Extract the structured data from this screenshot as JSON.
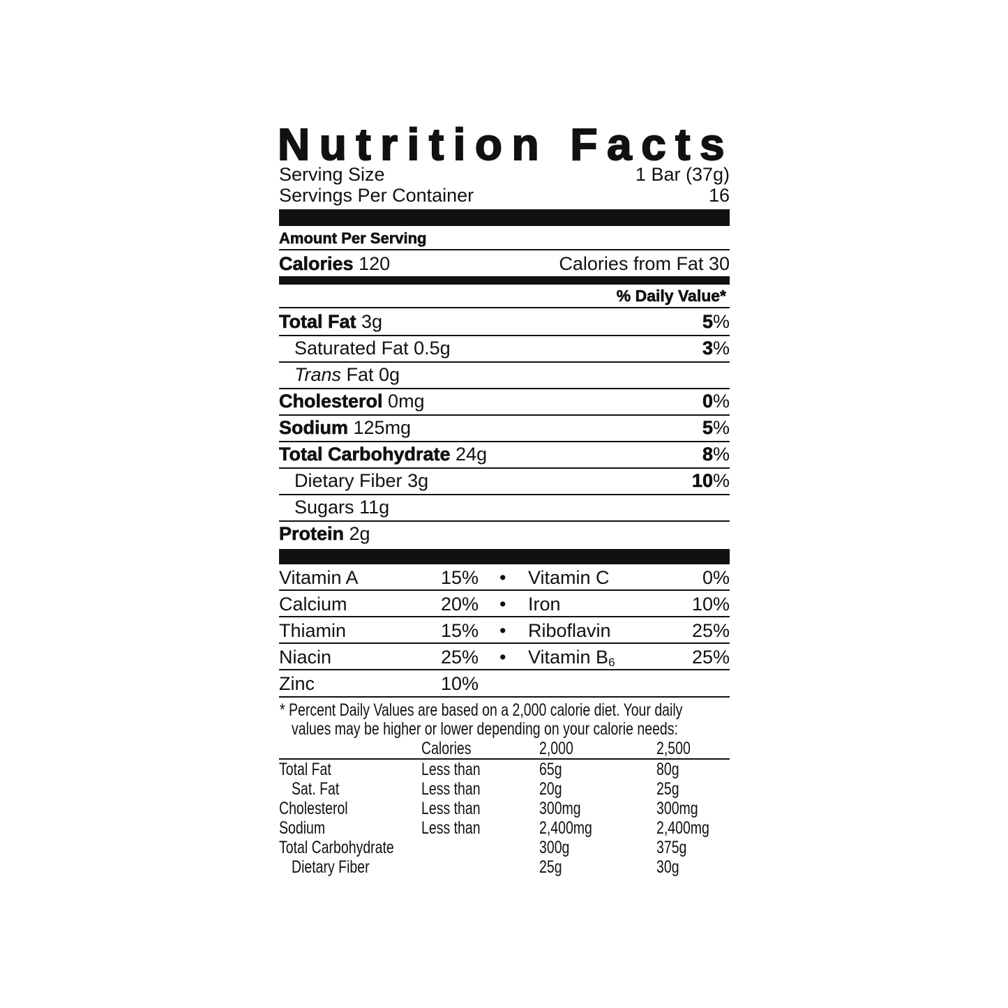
{
  "title": "Nutrition Facts",
  "serving": {
    "size_label": "Serving Size",
    "size_value": "1 Bar (37g)",
    "per_container_label": "Servings Per Container",
    "per_container_value": "16"
  },
  "amount_per_serving": "Amount Per Serving",
  "calories": {
    "label": "Calories",
    "value": "120",
    "from_fat": "Calories from Fat 30"
  },
  "daily_value_header": "% Daily Value*",
  "nutrients": [
    {
      "name": "Total Fat",
      "amount": "3g",
      "dv": "5",
      "pct": "%"
    },
    {
      "name": "Saturated Fat",
      "amount": "0.5g",
      "dv": "3",
      "pct": "%"
    },
    {
      "name": "Trans",
      "amount": "Fat 0g"
    },
    {
      "name": "Cholesterol",
      "amount": "0mg",
      "dv": "0",
      "pct": "%"
    },
    {
      "name": "Sodium",
      "amount": "125mg",
      "dv": "5",
      "pct": "%"
    },
    {
      "name": "Total Carbohydrate",
      "amount": "24g",
      "dv": "8",
      "pct": "%"
    },
    {
      "name": "Dietary Fiber",
      "amount": "3g",
      "dv": "10",
      "pct": "%"
    },
    {
      "name": "Sugars",
      "amount": "11g"
    },
    {
      "name": "Protein",
      "amount": "2g"
    }
  ],
  "vitamins": [
    {
      "left": "Vitamin A",
      "left_dv": "15%",
      "bullet": "•",
      "right": "Vitamin C",
      "right_dv": "0%"
    },
    {
      "left": "Calcium",
      "left_dv": "20%",
      "bullet": "•",
      "right": "Iron",
      "right_dv": "10%"
    },
    {
      "left": "Thiamin",
      "left_dv": "15%",
      "bullet": "•",
      "right": "Riboflavin",
      "right_dv": "25%"
    },
    {
      "left": "Niacin",
      "left_dv": "25%",
      "bullet": "•",
      "right": "Vitamin B",
      "right_sub": "6",
      "right_dv": "25%"
    },
    {
      "left": "Zinc",
      "left_dv": "10%"
    }
  ],
  "footnote": {
    "line1": "* Percent Daily Values are based on a 2,000 calorie diet. Your daily",
    "line2": "values may be higher or lower depending on your calorie needs:",
    "header": [
      "",
      "Calories",
      "2,000",
      "2,500"
    ],
    "rows": [
      [
        "Total Fat",
        "Less than",
        "65g",
        "80g"
      ],
      [
        "Sat. Fat",
        "Less than",
        "20g",
        "25g"
      ],
      [
        "Cholesterol",
        "Less than",
        "300mg",
        "300mg"
      ],
      [
        "Sodium",
        "Less than",
        "2,400mg",
        "2,400mg"
      ],
      [
        "Total Carbohydrate",
        "",
        "300g",
        "375g"
      ],
      [
        "Dietary Fiber",
        "",
        "25g",
        "30g"
      ]
    ]
  }
}
